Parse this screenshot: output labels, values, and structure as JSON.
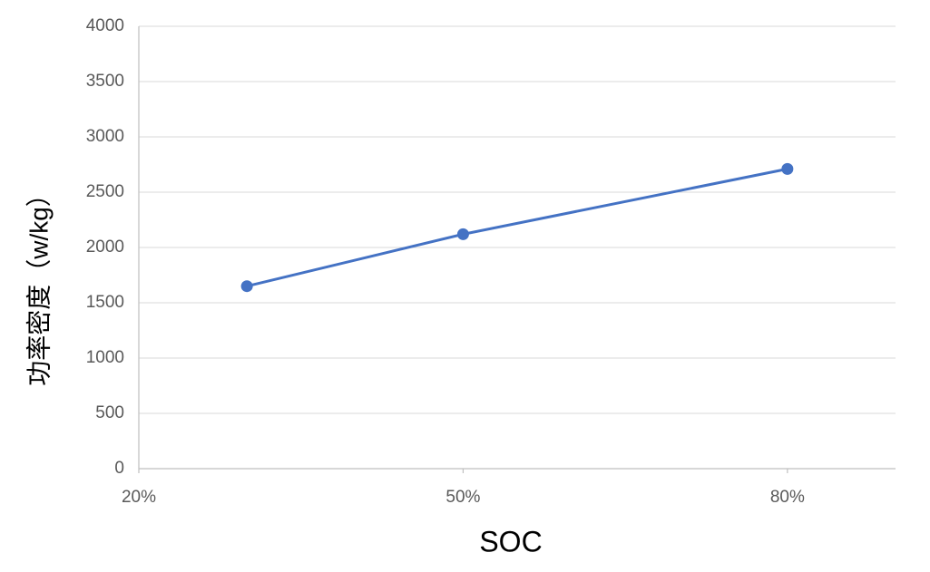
{
  "chart_data": {
    "type": "line",
    "x_label": "SOC",
    "y_label": "功率密度（w/kg）",
    "x": [
      30,
      50,
      80
    ],
    "series": [
      {
        "name": "功率密度",
        "color": "#4472c4",
        "values": [
          1650,
          2120,
          2710
        ]
      }
    ],
    "xlim": [
      20,
      90
    ],
    "xticks": [
      {
        "value": 20,
        "label": "20%"
      },
      {
        "value": 50,
        "label": "50%"
      },
      {
        "value": 80,
        "label": "80%"
      }
    ],
    "ylim": [
      0,
      4000
    ],
    "yticks": [
      0,
      500,
      1000,
      1500,
      2000,
      2500,
      3000,
      3500,
      4000
    ],
    "grid": true
  }
}
